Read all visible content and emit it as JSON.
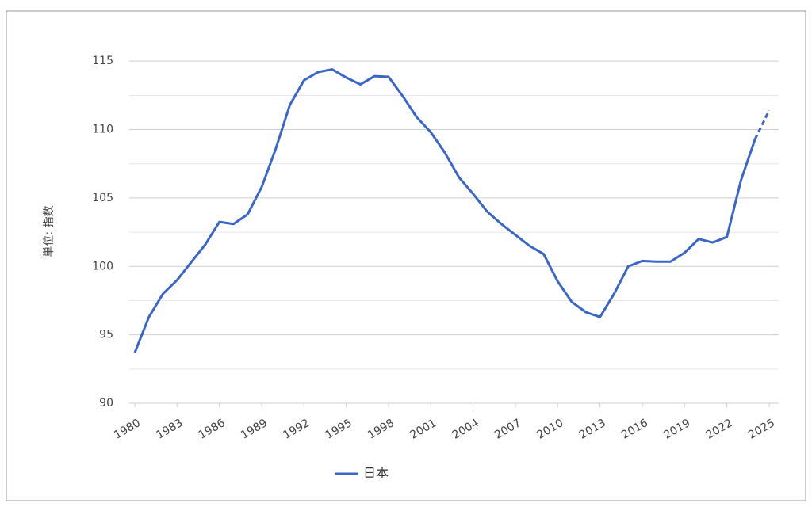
{
  "chart_data": {
    "type": "line",
    "y_label": "単位: 指数",
    "x": [
      1980,
      1981,
      1982,
      1983,
      1984,
      1985,
      1986,
      1987,
      1988,
      1989,
      1990,
      1991,
      1992,
      1993,
      1994,
      1995,
      1996,
      1997,
      1998,
      1999,
      2000,
      2001,
      2002,
      2003,
      2004,
      2005,
      2006,
      2007,
      2008,
      2009,
      2010,
      2011,
      2012,
      2013,
      2014,
      2015,
      2016,
      2017,
      2018,
      2019,
      2020,
      2021,
      2022,
      2023,
      2024,
      2025
    ],
    "series": [
      {
        "name": "日本",
        "color": "#3a66c8",
        "values": [
          93.7,
          96.3,
          98.0,
          99.0,
          100.3,
          101.6,
          103.25,
          103.1,
          103.8,
          105.8,
          108.6,
          111.8,
          113.6,
          114.2,
          114.4,
          113.8,
          113.3,
          113.9,
          113.85,
          112.45,
          110.9,
          109.8,
          108.3,
          106.5,
          105.3,
          104.0,
          103.1,
          102.3,
          101.5,
          100.9,
          98.9,
          97.4,
          96.65,
          96.3,
          98.0,
          100.0,
          100.4,
          100.35,
          100.35,
          101.0,
          102.0,
          101.75,
          102.15,
          106.3,
          109.3,
          111.4
        ],
        "dashed_from_x": 2024
      }
    ],
    "xlim": [
      1980,
      2025
    ],
    "xticks": [
      1980,
      1983,
      1986,
      1989,
      1992,
      1995,
      1998,
      2001,
      2004,
      2007,
      2010,
      2013,
      2016,
      2019,
      2022,
      2025
    ],
    "ylim": [
      90,
      117.5
    ],
    "yticks": [
      90,
      95,
      100,
      105,
      110,
      115
    ],
    "minor_yticks": [
      92.5,
      97.5,
      102.5,
      107.5,
      112.5
    ],
    "grid": true,
    "legend": "bottom"
  }
}
